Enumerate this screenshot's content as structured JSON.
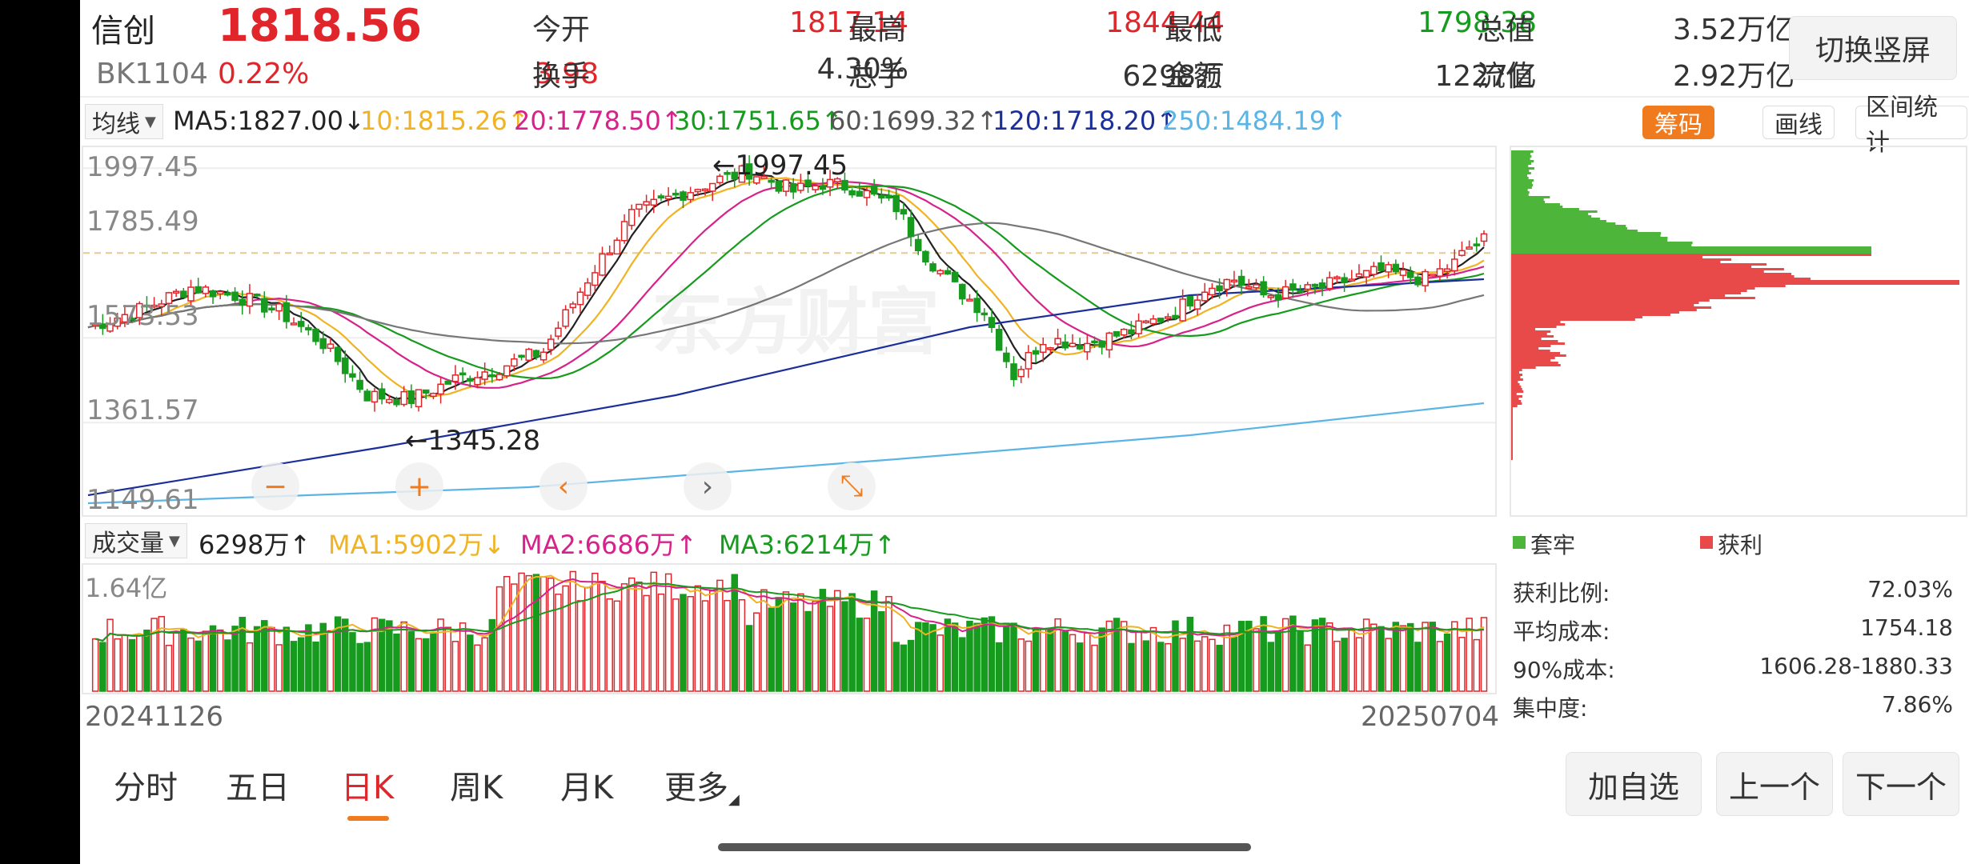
{
  "stock": {
    "name": "信创",
    "price": "1818.56",
    "code": "BK1104",
    "change_pct": "0.22%",
    "change": "3.98"
  },
  "quote": [
    {
      "label": "今开",
      "value": "1817.14",
      "color": "red"
    },
    {
      "label": "最高",
      "value": "1844.44",
      "color": "red"
    },
    {
      "label": "最低",
      "value": "1798.38",
      "color": "green"
    },
    {
      "label": "总值",
      "value": "3.52万亿",
      "color": "dark"
    },
    {
      "label": "换手",
      "value": "4.30%",
      "color": "dark"
    },
    {
      "label": "总手",
      "value": "6298万",
      "color": "dark"
    },
    {
      "label": "金额",
      "value": "1227亿",
      "color": "dark"
    },
    {
      "label": "流值",
      "value": "2.92万亿",
      "color": "dark"
    }
  ],
  "switch_label": "切换竖屏",
  "ma_selector": "均线",
  "ma_items": [
    {
      "text": "MA5:1827.00↓",
      "color": "#222222"
    },
    {
      "text": "10:1815.26↑",
      "color": "#f0b323"
    },
    {
      "text": "20:1778.50↑",
      "color": "#d6228a"
    },
    {
      "text": "30:1751.65↑",
      "color": "#169b1f"
    },
    {
      "text": "60:1699.32↑",
      "color": "#555555"
    },
    {
      "text": "120:1718.20↑",
      "color": "#1a2f9a"
    },
    {
      "text": "250:1484.19↑",
      "color": "#5ab4e5"
    }
  ],
  "tags": {
    "chips": "筹码",
    "draw": "画线",
    "range": "区间统计"
  },
  "price_axis": [
    "1997.45",
    "1785.49",
    "1573.53",
    "1361.57",
    "1149.61"
  ],
  "annotations": {
    "high": "←1997.45",
    "low": "←1345.28"
  },
  "watermark": "东方财富",
  "nav": {
    "zoom_out": "−",
    "zoom_in": "+",
    "left": "‹",
    "right": "›",
    "fit": "⤡"
  },
  "vol_selector": "成交量",
  "vol_items": [
    {
      "text": "6298万↑",
      "color": "#222222"
    },
    {
      "text": "MA1:5902万↓",
      "color": "#f0b323"
    },
    {
      "text": "MA2:6686万↑",
      "color": "#d6228a"
    },
    {
      "text": "MA3:6214万↑",
      "color": "#169b1f"
    }
  ],
  "vol_axis": "1.64亿",
  "dates": {
    "start": "20241126",
    "end": "20250704"
  },
  "chip_legend": {
    "loss": "套牢",
    "profit": "获利",
    "loss_color": "#4cb53a",
    "profit_color": "#e84a4a"
  },
  "chip_stats": [
    {
      "label": "获利比例:",
      "value": "72.03%"
    },
    {
      "label": "平均成本:",
      "value": "1754.18"
    },
    {
      "label": "90%成本:",
      "value": "1606.28-1880.33"
    },
    {
      "label": "集中度:",
      "value": "7.86%"
    }
  ],
  "period_tabs": [
    "分时",
    "五日",
    "日K",
    "周K",
    "月K",
    "更多"
  ],
  "active_tab": "日K",
  "actions": {
    "add": "加自选",
    "prev": "上一个",
    "next": "下一个"
  },
  "colors": {
    "up": "#e0262b",
    "down": "#169b1f",
    "accent": "#f07a1e"
  }
}
